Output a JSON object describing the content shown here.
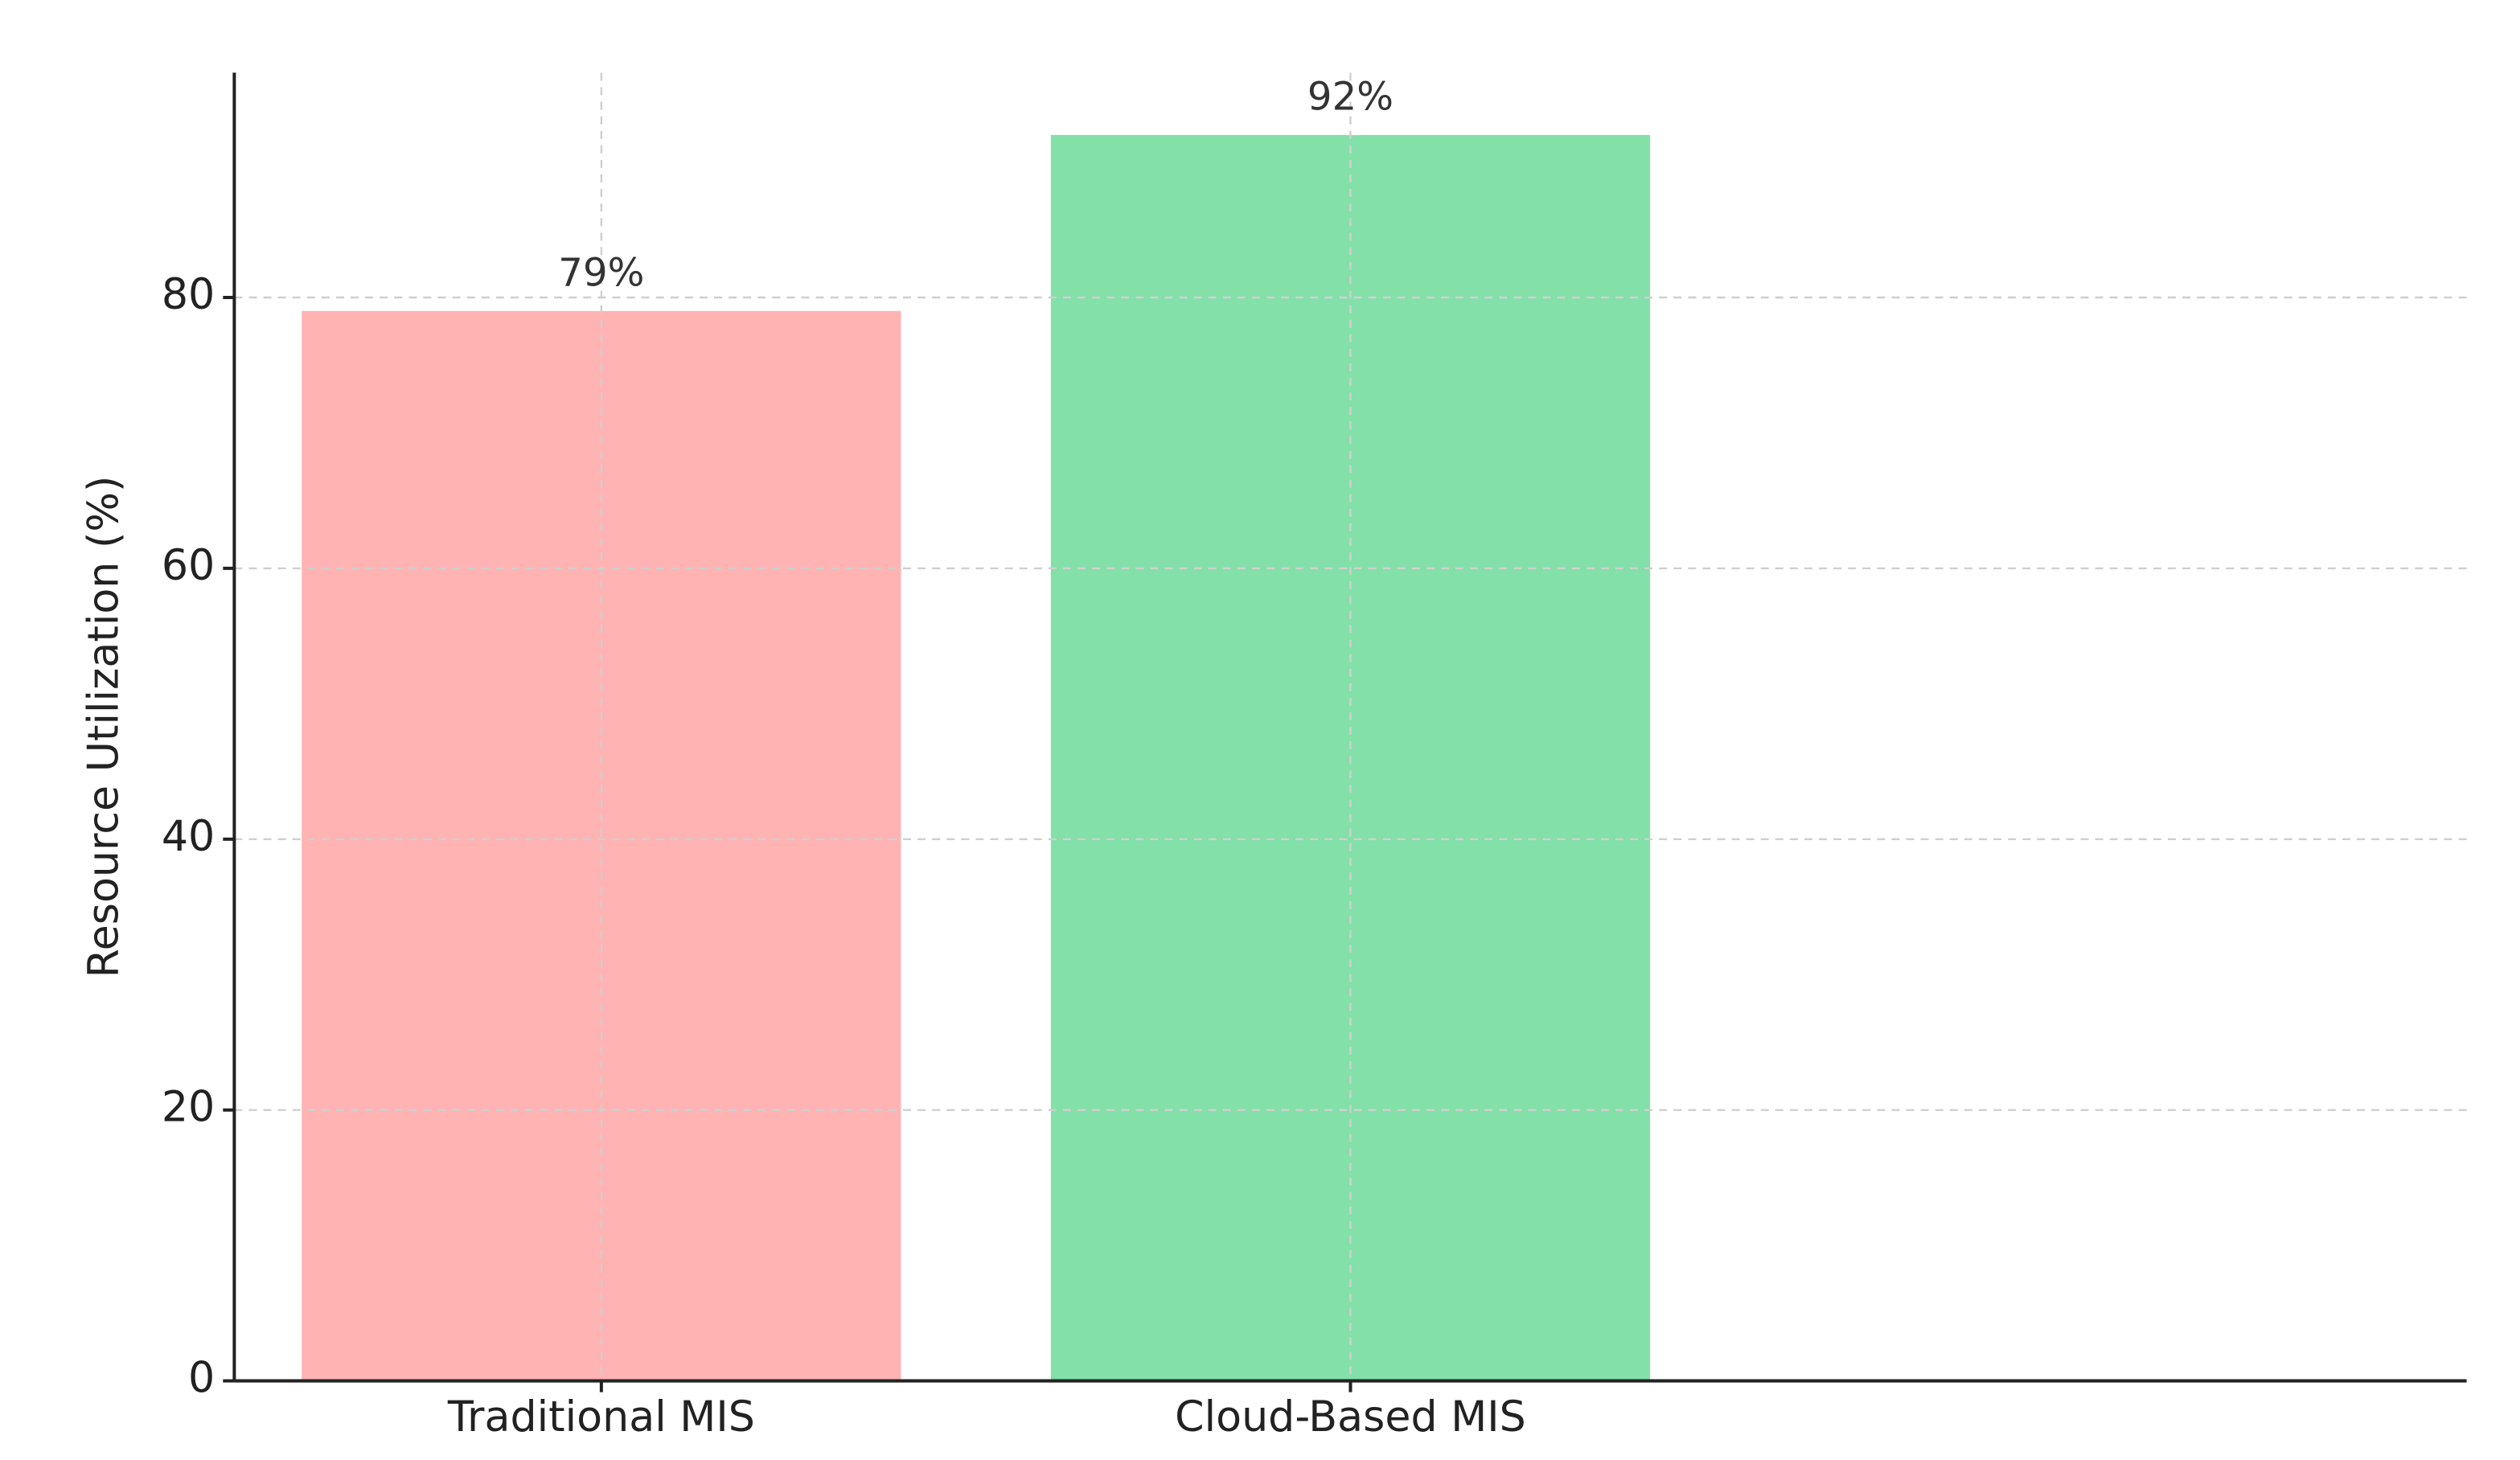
{
  "chart_data": {
    "type": "bar",
    "y_label": "Resource Utilization (%)",
    "categories": [
      "Traditional MIS",
      "Cloud-Based MIS"
    ],
    "values": [
      79,
      92
    ],
    "value_labels": [
      "79%",
      "92%"
    ],
    "colors": [
      "#ffb3b3",
      "#83e0a8"
    ],
    "ylim": [
      0,
      96.6
    ],
    "yticks": [
      0,
      20,
      40,
      60,
      80
    ],
    "grid": true
  }
}
